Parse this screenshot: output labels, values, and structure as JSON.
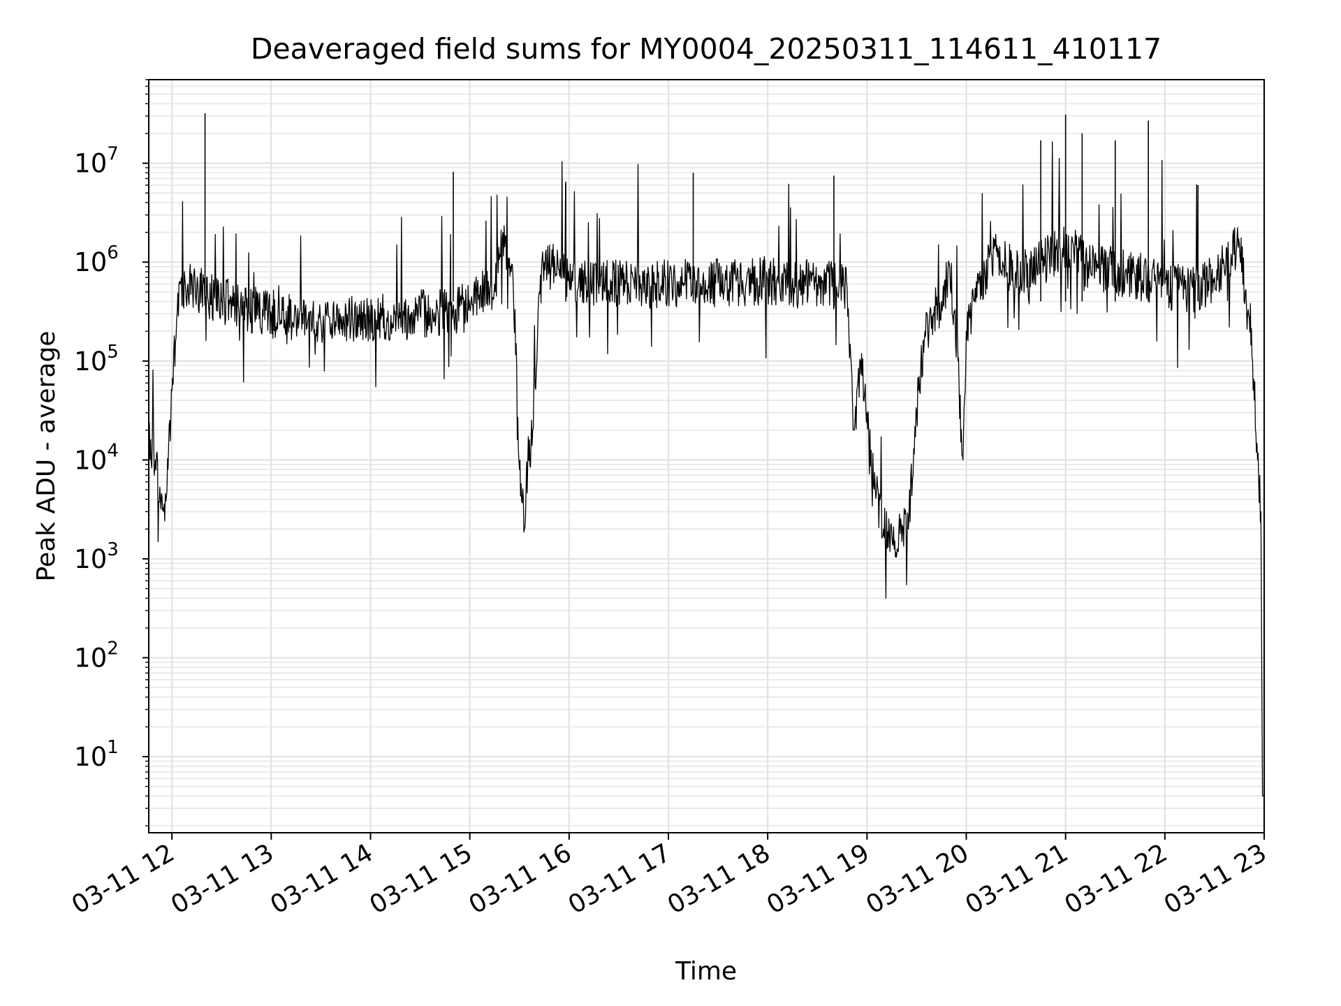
{
  "chart_data": {
    "type": "line",
    "title": "Deaveraged field sums for MY0004_20250311_114611_410117",
    "xlabel": "Time",
    "ylabel": "Peak ADU - average",
    "yscale": "log",
    "ylim": [
      1.7,
      70000000
    ],
    "xlim": [
      "2025-03-11 11:46",
      "2025-03-11 23:00"
    ],
    "grid": "both (major and minor)",
    "x_tick_labels": [
      "03-11 12",
      "03-11 13",
      "03-11 14",
      "03-11 15",
      "03-11 16",
      "03-11 17",
      "03-11 18",
      "03-11 19",
      "03-11 20",
      "03-11 21",
      "03-11 22",
      "03-11 23"
    ],
    "y_tick_labels": [
      {
        "base": "10",
        "exp": "1"
      },
      {
        "base": "10",
        "exp": "2"
      },
      {
        "base": "10",
        "exp": "3"
      },
      {
        "base": "10",
        "exp": "4"
      },
      {
        "base": "10",
        "exp": "5"
      },
      {
        "base": "10",
        "exp": "6"
      },
      {
        "base": "10",
        "exp": "7"
      }
    ],
    "series": [
      {
        "color": "#000000",
        "x": [
          "2025-03-11 11:46",
          "2025-03-11 11:50",
          "2025-03-11 11:53",
          "2025-03-11 11:55",
          "2025-03-11 11:57",
          "2025-03-11 12:00",
          "2025-03-11 12:05",
          "2025-03-11 12:15",
          "2025-03-11 12:30",
          "2025-03-11 12:45",
          "2025-03-11 13:00",
          "2025-03-11 13:15",
          "2025-03-11 13:30",
          "2025-03-11 14:00",
          "2025-03-11 14:30",
          "2025-03-11 15:00",
          "2025-03-11 15:15",
          "2025-03-11 15:20",
          "2025-03-11 15:25",
          "2025-03-11 15:28",
          "2025-03-11 15:30",
          "2025-03-11 15:33",
          "2025-03-11 15:35",
          "2025-03-11 15:38",
          "2025-03-11 15:42",
          "2025-03-11 15:45",
          "2025-03-11 15:50",
          "2025-03-11 15:55",
          "2025-03-11 16:00",
          "2025-03-11 16:30",
          "2025-03-11 17:00",
          "2025-03-11 17:30",
          "2025-03-11 18:00",
          "2025-03-11 18:30",
          "2025-03-11 18:48",
          "2025-03-11 18:52",
          "2025-03-11 18:56",
          "2025-03-11 19:00",
          "2025-03-11 19:05",
          "2025-03-11 19:10",
          "2025-03-11 19:15",
          "2025-03-11 19:20",
          "2025-03-11 19:25",
          "2025-03-11 19:30",
          "2025-03-11 19:35",
          "2025-03-11 19:40",
          "2025-03-11 19:45",
          "2025-03-11 19:50",
          "2025-03-11 19:55",
          "2025-03-11 19:58",
          "2025-03-11 20:00",
          "2025-03-11 20:05",
          "2025-03-11 20:15",
          "2025-03-11 20:30",
          "2025-03-11 20:45",
          "2025-03-11 21:00",
          "2025-03-11 21:15",
          "2025-03-11 21:30",
          "2025-03-11 21:45",
          "2025-03-11 22:00",
          "2025-03-11 22:15",
          "2025-03-11 22:30",
          "2025-03-11 22:40",
          "2025-03-11 22:45",
          "2025-03-11 22:50",
          "2025-03-11 22:53",
          "2025-03-11 22:56",
          "2025-03-11 22:58",
          "2025-03-11 22:59",
          "2025-03-11 23:00"
        ],
        "y": [
          20000,
          10000,
          4000,
          3000,
          5000,
          50000,
          600000,
          550000,
          400000,
          350000,
          300000,
          280000,
          250000,
          260000,
          300000,
          350000,
          600000,
          2000000,
          800000,
          150000,
          8000,
          2000,
          9000,
          20000,
          500000,
          1000000,
          900000,
          700000,
          650000,
          600000,
          600000,
          620000,
          650000,
          600000,
          550000,
          20000,
          100000,
          30000,
          5000,
          2000,
          1800,
          1800,
          2000,
          30000,
          200000,
          300000,
          400000,
          900000,
          100000,
          10000,
          200000,
          400000,
          1200000,
          800000,
          1000000,
          1500000,
          900000,
          800000,
          700000,
          600000,
          500000,
          700000,
          1200000,
          1500000,
          300000,
          100000,
          10000,
          3000,
          4,
          4
        ]
      }
    ],
    "spikes": [
      {
        "x": "2025-03-11 12:20",
        "y": 32000000
      },
      {
        "x": "2025-03-11 14:50",
        "y": 8200000
      },
      {
        "x": "2025-03-11 15:58",
        "y": 6500000
      },
      {
        "x": "2025-03-11 17:15",
        "y": 8000000
      },
      {
        "x": "2025-03-11 18:40",
        "y": 7500000
      },
      {
        "x": "2025-03-11 20:45",
        "y": 17000000
      },
      {
        "x": "2025-03-11 21:00",
        "y": 31000000
      },
      {
        "x": "2025-03-11 21:10",
        "y": 20000000
      },
      {
        "x": "2025-03-11 21:30",
        "y": 17000000
      },
      {
        "x": "2025-03-11 21:50",
        "y": 27000000
      },
      {
        "x": "2025-03-11 22:20",
        "y": 6000000
      }
    ]
  }
}
